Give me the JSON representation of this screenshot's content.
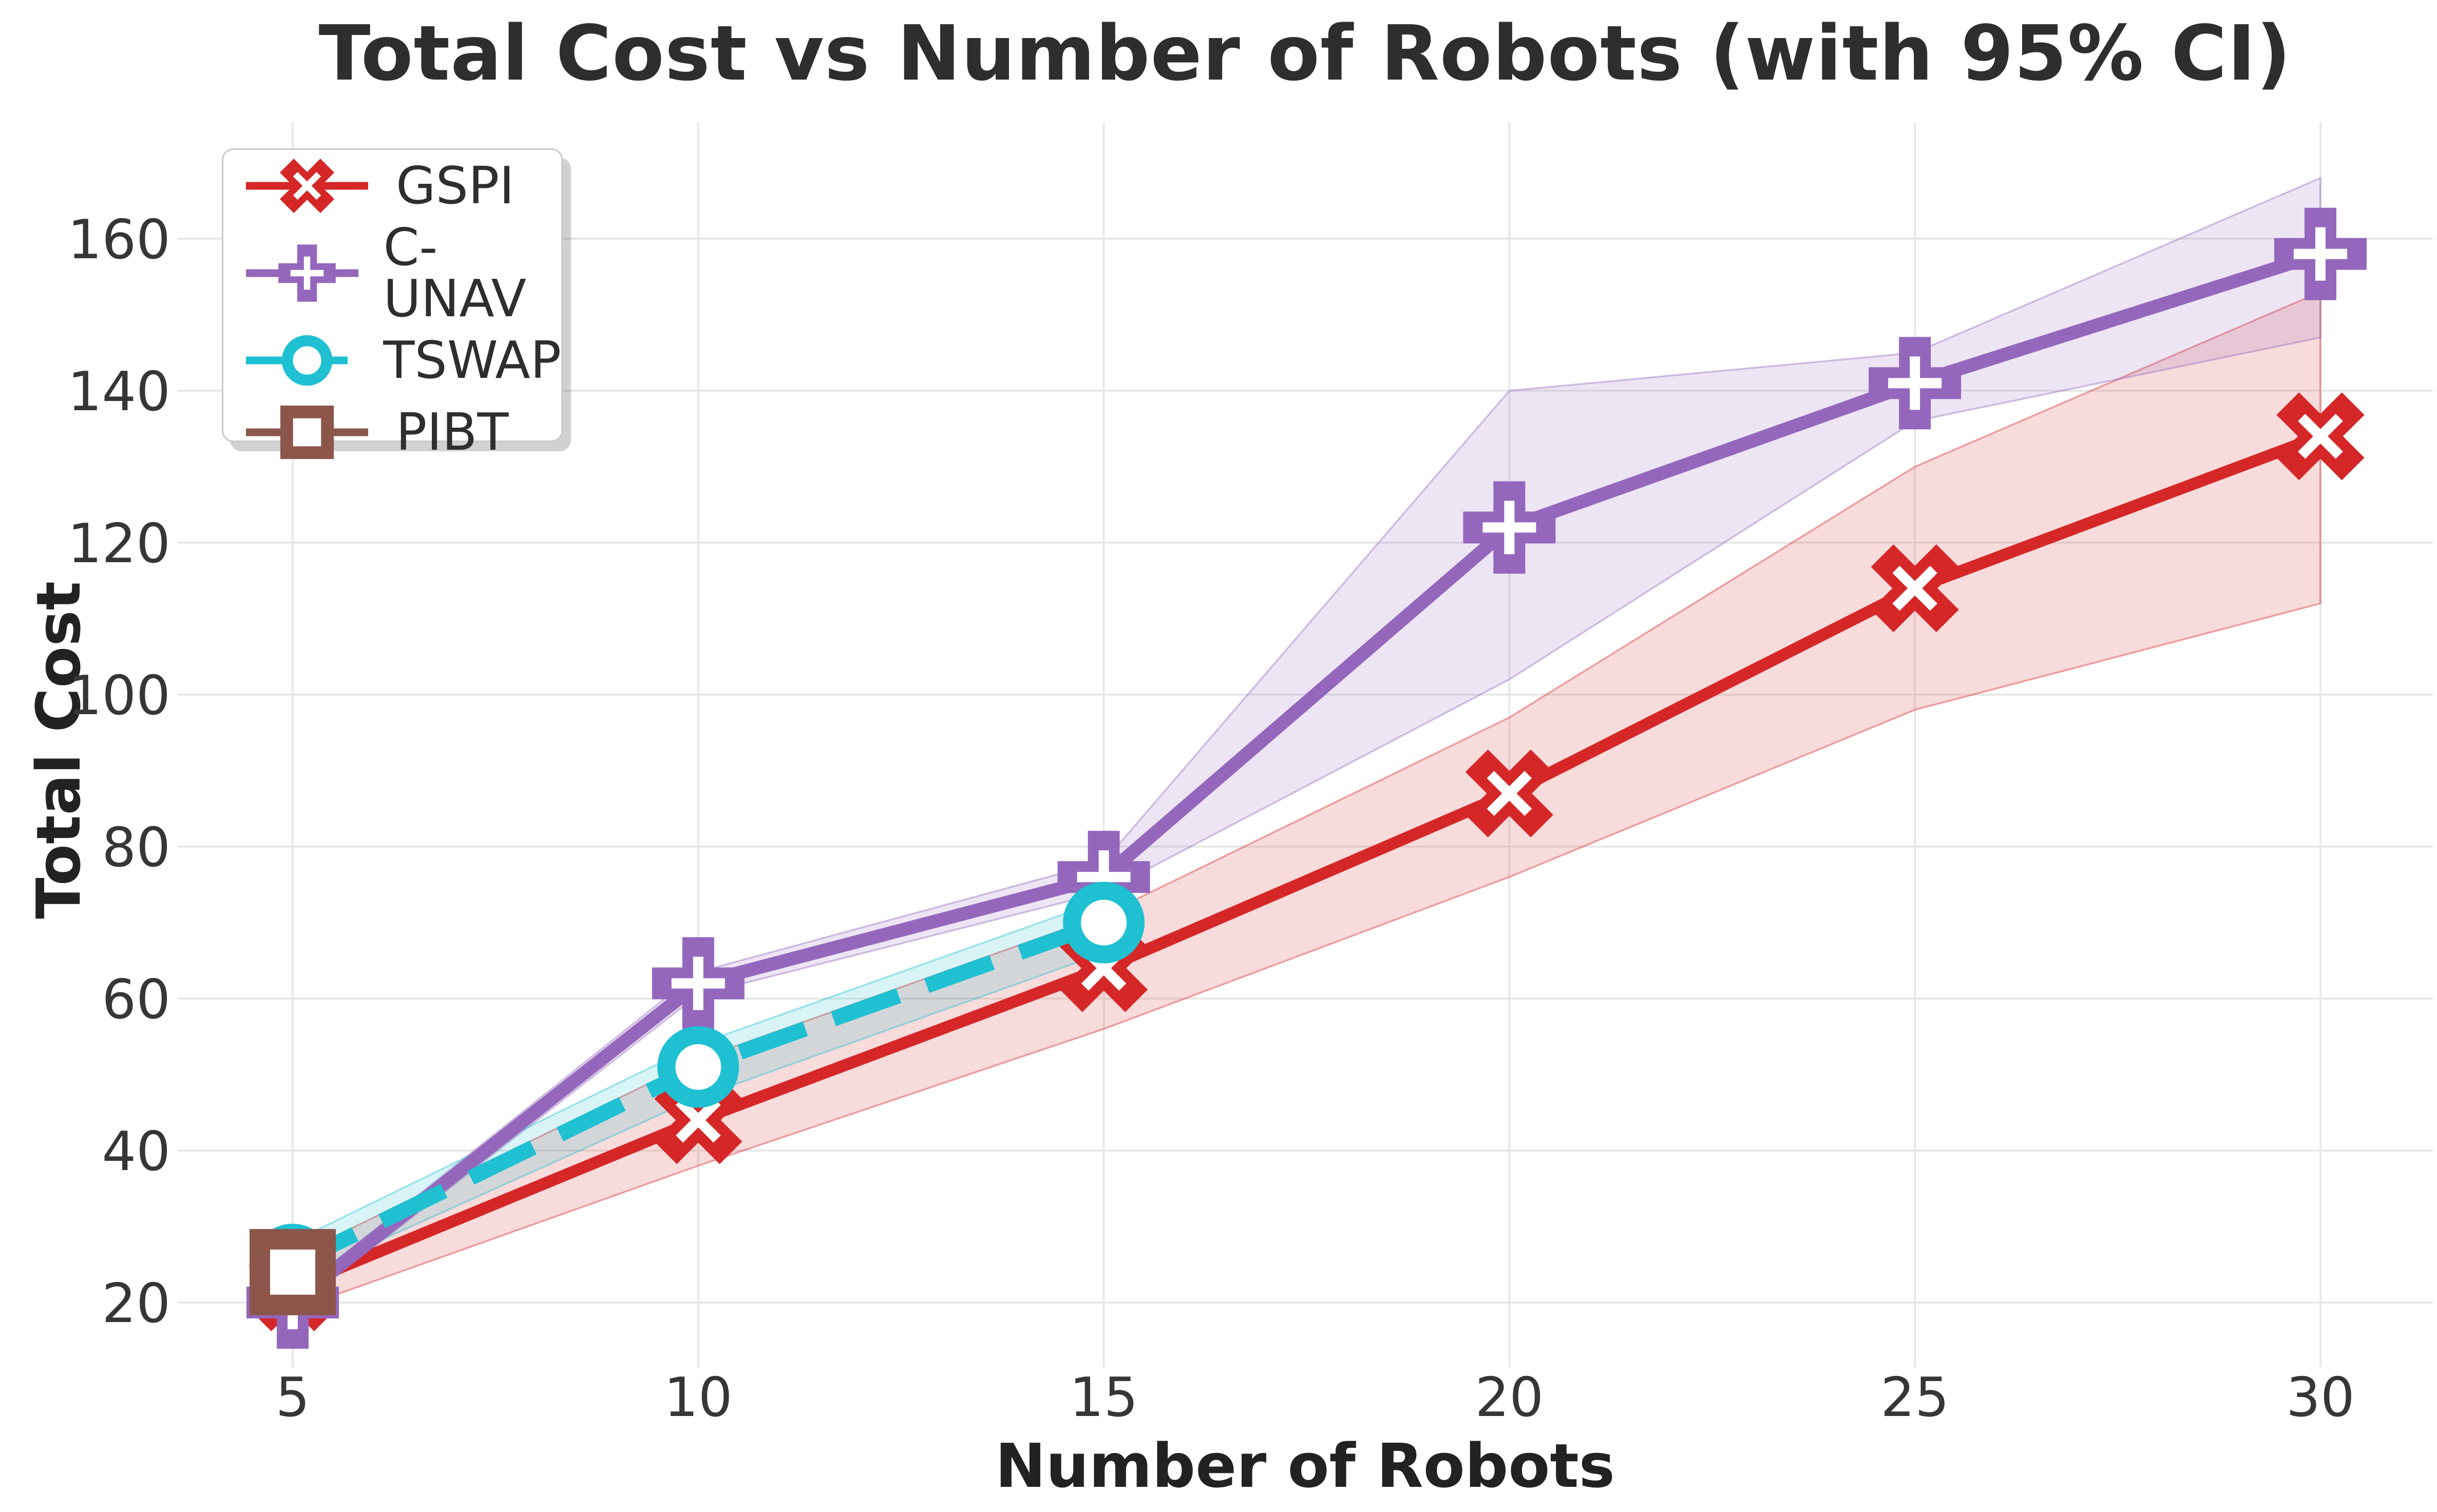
{
  "chart_data": {
    "type": "line",
    "title": "Total Cost vs Number of Robots (with 95% CI)",
    "xlabel": "Number of Robots",
    "ylabel": "Total Cost",
    "x_ticks": [
      5,
      10,
      15,
      20,
      25,
      30
    ],
    "y_ticks": [
      20,
      40,
      60,
      80,
      100,
      120,
      140,
      160
    ],
    "xlim": [
      3.6,
      31.4
    ],
    "ylim": [
      11.5,
      175.3
    ],
    "grid": true,
    "legend_position": "upper left",
    "ci_level": "95%",
    "series": [
      {
        "name": "GSPI",
        "color": "#d62728",
        "marker": "x",
        "linestyle": "solid",
        "linewidth": 23,
        "x": [
          5,
          10,
          15,
          20,
          25,
          30
        ],
        "y": [
          22,
          44,
          64,
          87,
          114,
          134
        ],
        "ci_lower": [
          19,
          38,
          56,
          76,
          98,
          112
        ],
        "ci_upper": [
          26,
          52,
          71,
          97,
          130,
          153
        ]
      },
      {
        "name": "C-UNAV",
        "color": "#9467bd",
        "marker": "plus",
        "linestyle": "solid",
        "linewidth": 26,
        "x": [
          5,
          10,
          15,
          20,
          25,
          30
        ],
        "y": [
          20,
          62,
          76,
          122,
          141,
          158
        ],
        "ci_lower": [
          19,
          60.5,
          74,
          102,
          136,
          147
        ],
        "ci_upper": [
          21,
          63.5,
          78,
          140,
          145,
          168
        ]
      },
      {
        "name": "TSWAP",
        "color": "#1ec0d2",
        "marker": "circle",
        "linestyle": "dashed",
        "linewidth": 30,
        "x": [
          5,
          10,
          15
        ],
        "y": [
          25,
          51,
          70
        ],
        "ci_lower": [
          23,
          47,
          66
        ],
        "ci_upper": [
          28,
          54,
          73
        ]
      },
      {
        "name": "PIBT",
        "color": "#8c564b",
        "marker": "square",
        "linestyle": "solid",
        "linewidth": 23,
        "x": [
          5
        ],
        "y": [
          24
        ],
        "ci_lower": [
          24
        ],
        "ci_upper": [
          24
        ]
      }
    ],
    "style": {
      "background": "#ffffff",
      "grid_color": "#e8e8e8",
      "band_opacity": 0.17,
      "band_edge_opacity": 0.4,
      "tick_color": "#363636",
      "title_color": "#2e2e2e",
      "label_color": "#222222"
    }
  }
}
